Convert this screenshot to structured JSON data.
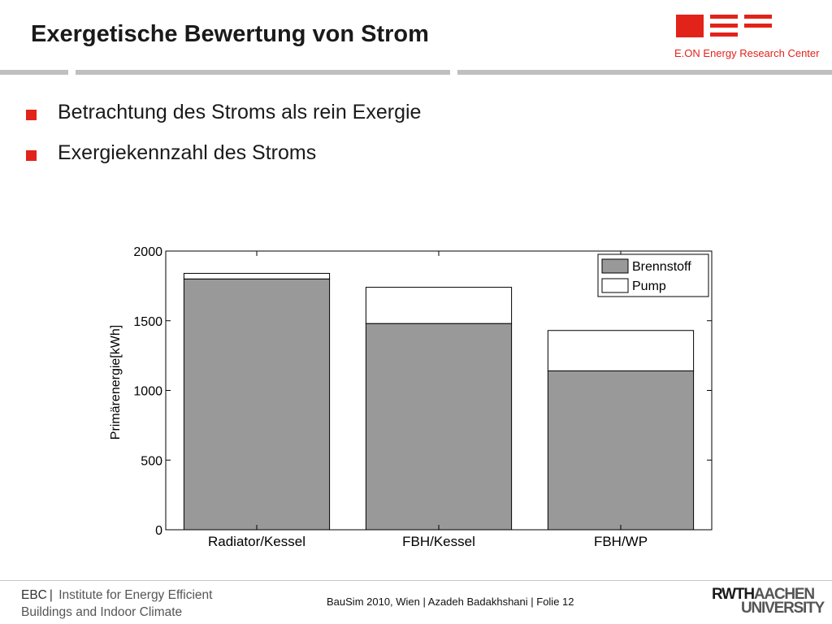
{
  "slide": {
    "title": "Exergetische Bewertung von Strom",
    "bullets": [
      "Betrachtung des Stroms als rein Exergie",
      "Exergiekennzahl des Stroms"
    ]
  },
  "branding": {
    "eon_text": "E.ON Energy Research Center",
    "accent_color": "#e2231a",
    "rwth_line1_bold": "RWTH",
    "rwth_line1_light": "AACHEN",
    "rwth_line2": "UNIVERSITY"
  },
  "footer": {
    "ebc": "EBC",
    "institute_line1": "Institute for Energy Efficient",
    "institute_line2": "Buildings and Indoor Climate",
    "center": "BauSim 2010, Wien | Azadeh Badakhshani | Folie 12"
  },
  "chart_data": {
    "type": "bar",
    "stacked": true,
    "title": "",
    "xlabel": "",
    "ylabel": "Primärenergie[kWh]",
    "ylim": [
      0,
      2000
    ],
    "yticks": [
      0,
      500,
      1000,
      1500,
      2000
    ],
    "grid": false,
    "legend_position": "top-right",
    "categories": [
      "Radiator/Kessel",
      "FBH/Kessel",
      "FBH/WP"
    ],
    "series": [
      {
        "name": "Brennstoff",
        "color": "#999999",
        "values": [
          1800,
          1480,
          1140
        ]
      },
      {
        "name": "Pump",
        "color": "#ffffff",
        "values": [
          40,
          260,
          290
        ]
      }
    ]
  }
}
